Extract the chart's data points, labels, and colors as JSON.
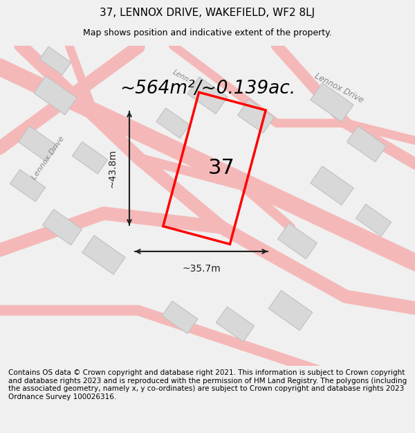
{
  "title_line1": "37, LENNOX DRIVE, WAKEFIELD, WF2 8LJ",
  "title_line2": "Map shows position and indicative extent of the property.",
  "area_text": "~564m²/~0.139ac.",
  "number_label": "37",
  "dim_vertical": "~43.8m",
  "dim_horizontal": "~35.7m",
  "footer_text": "Contains OS data © Crown copyright and database right 2021. This information is subject to Crown copyright and database rights 2023 and is reproduced with the permission of HM Land Registry. The polygons (including the associated geometry, namely x, y co-ordinates) are subject to Crown copyright and database rights 2023 Ordnance Survey 100026316.",
  "bg_color": "#f5f5f5",
  "map_bg": "#ffffff",
  "road_color_light": "#f5b8b8",
  "road_color_dark": "#e08080",
  "building_fill": "#d8d8d8",
  "building_edge": "#c0c0c0",
  "property_color": "#ff0000",
  "dim_color": "#222222",
  "road_label_color": "#888888",
  "title_fontsize": 11,
  "subtitle_fontsize": 9,
  "area_fontsize": 19,
  "number_fontsize": 22,
  "dim_fontsize": 10,
  "footer_fontsize": 7.5
}
